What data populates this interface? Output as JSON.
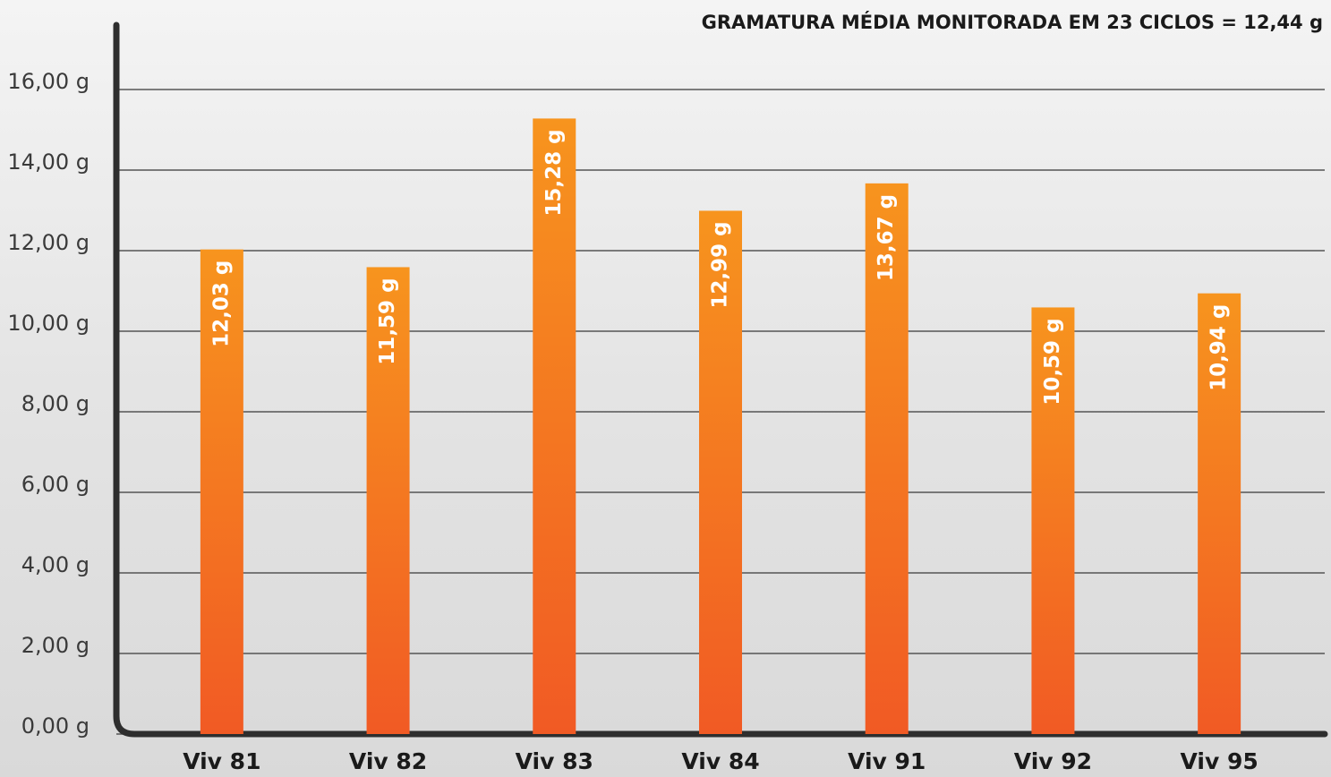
{
  "chart_data": {
    "type": "bar",
    "title": "GRAMATURA MÉDIA MONITORADA EM 23 CICLOS = 12,44 g",
    "categories": [
      "Viv 81",
      "Viv 82",
      "Viv 83",
      "Viv 84",
      "Viv 91",
      "Viv 92",
      "Viv 95"
    ],
    "values": [
      12.03,
      11.59,
      15.28,
      12.99,
      13.67,
      10.59,
      10.94
    ],
    "value_labels": [
      "12,03 g",
      "11,59 g",
      "15,28 g",
      "12,99 g",
      "13,67 g",
      "10,59 g",
      "10,94 g"
    ],
    "color": "#f47b20",
    "ylim": [
      0,
      16
    ],
    "yticks": [
      {
        "value": 0,
        "label": "0,00 g"
      },
      {
        "value": 2,
        "label": "2,00 g"
      },
      {
        "value": 4,
        "label": "4,00 g"
      },
      {
        "value": 6,
        "label": "6,00 g"
      },
      {
        "value": 8,
        "label": "8,00 g"
      },
      {
        "value": 10,
        "label": "10,00 g"
      },
      {
        "value": 12,
        "label": "12,00 g"
      },
      {
        "value": 14,
        "label": "14,00 g"
      },
      {
        "value": 16,
        "label": "16,00 g"
      }
    ],
    "grid": true
  }
}
